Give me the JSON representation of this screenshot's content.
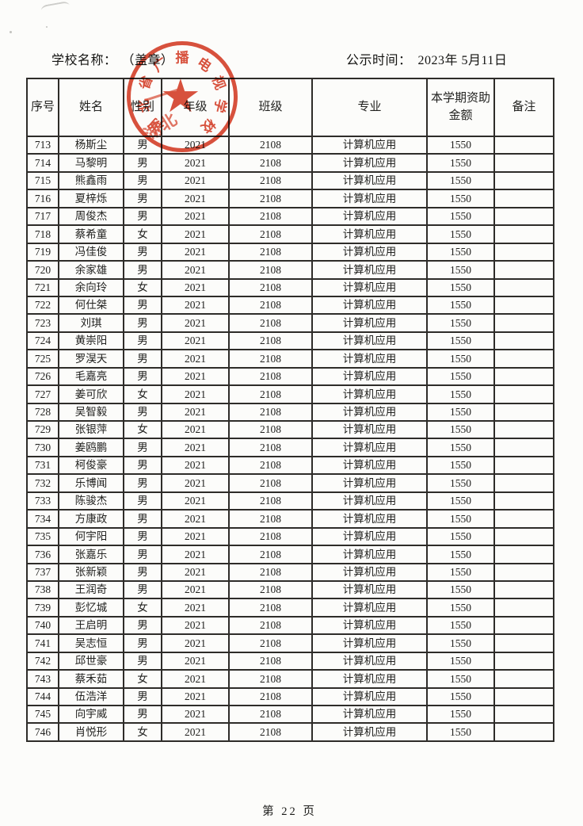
{
  "header": {
    "school_label": "学校名称：",
    "seal_note": "（盖章）",
    "publish_label": "公示时间：",
    "publish_date": "2023年 5月11日"
  },
  "stamp": {
    "text": "湖北省广播电视学校",
    "star_icon": "★",
    "ghost_text": "湖北"
  },
  "colors": {
    "stamp_red": "#d8452f"
  },
  "table": {
    "column_keys": [
      "no",
      "name",
      "gender",
      "grade",
      "class",
      "major",
      "amount",
      "note"
    ],
    "headers": [
      "序号",
      "姓名",
      "性别",
      "年级",
      "班级",
      "专业",
      "本学期资助金额",
      "备注"
    ],
    "rows": [
      [
        "713",
        "杨斯尘",
        "男",
        "2021",
        "2108",
        "计算机应用",
        "1550",
        ""
      ],
      [
        "714",
        "马黎明",
        "男",
        "2021",
        "2108",
        "计算机应用",
        "1550",
        ""
      ],
      [
        "715",
        "熊鑫雨",
        "男",
        "2021",
        "2108",
        "计算机应用",
        "1550",
        ""
      ],
      [
        "716",
        "夏梓烁",
        "男",
        "2021",
        "2108",
        "计算机应用",
        "1550",
        ""
      ],
      [
        "717",
        "周俊杰",
        "男",
        "2021",
        "2108",
        "计算机应用",
        "1550",
        ""
      ],
      [
        "718",
        "蔡希童",
        "女",
        "2021",
        "2108",
        "计算机应用",
        "1550",
        ""
      ],
      [
        "719",
        "冯佳俊",
        "男",
        "2021",
        "2108",
        "计算机应用",
        "1550",
        ""
      ],
      [
        "720",
        "余家雄",
        "男",
        "2021",
        "2108",
        "计算机应用",
        "1550",
        ""
      ],
      [
        "721",
        "余向玲",
        "女",
        "2021",
        "2108",
        "计算机应用",
        "1550",
        ""
      ],
      [
        "722",
        "何仕桀",
        "男",
        "2021",
        "2108",
        "计算机应用",
        "1550",
        ""
      ],
      [
        "723",
        "刘琪",
        "男",
        "2021",
        "2108",
        "计算机应用",
        "1550",
        ""
      ],
      [
        "724",
        "黄崇阳",
        "男",
        "2021",
        "2108",
        "计算机应用",
        "1550",
        ""
      ],
      [
        "725",
        "罗淏天",
        "男",
        "2021",
        "2108",
        "计算机应用",
        "1550",
        ""
      ],
      [
        "726",
        "毛嘉亮",
        "男",
        "2021",
        "2108",
        "计算机应用",
        "1550",
        ""
      ],
      [
        "727",
        "姜可欣",
        "女",
        "2021",
        "2108",
        "计算机应用",
        "1550",
        ""
      ],
      [
        "728",
        "吴智毅",
        "男",
        "2021",
        "2108",
        "计算机应用",
        "1550",
        ""
      ],
      [
        "729",
        "张银萍",
        "女",
        "2021",
        "2108",
        "计算机应用",
        "1550",
        ""
      ],
      [
        "730",
        "姜鸥鹏",
        "男",
        "2021",
        "2108",
        "计算机应用",
        "1550",
        ""
      ],
      [
        "731",
        "柯俊豪",
        "男",
        "2021",
        "2108",
        "计算机应用",
        "1550",
        ""
      ],
      [
        "732",
        "乐博闻",
        "男",
        "2021",
        "2108",
        "计算机应用",
        "1550",
        ""
      ],
      [
        "733",
        "陈骏杰",
        "男",
        "2021",
        "2108",
        "计算机应用",
        "1550",
        ""
      ],
      [
        "734",
        "方康政",
        "男",
        "2021",
        "2108",
        "计算机应用",
        "1550",
        ""
      ],
      [
        "735",
        "何宇阳",
        "男",
        "2021",
        "2108",
        "计算机应用",
        "1550",
        ""
      ],
      [
        "736",
        "张嘉乐",
        "男",
        "2021",
        "2108",
        "计算机应用",
        "1550",
        ""
      ],
      [
        "737",
        "张新颖",
        "男",
        "2021",
        "2108",
        "计算机应用",
        "1550",
        ""
      ],
      [
        "738",
        "王润奇",
        "男",
        "2021",
        "2108",
        "计算机应用",
        "1550",
        ""
      ],
      [
        "739",
        "彭忆城",
        "女",
        "2021",
        "2108",
        "计算机应用",
        "1550",
        ""
      ],
      [
        "740",
        "王启明",
        "男",
        "2021",
        "2108",
        "计算机应用",
        "1550",
        ""
      ],
      [
        "741",
        "吴志恒",
        "男",
        "2021",
        "2108",
        "计算机应用",
        "1550",
        ""
      ],
      [
        "742",
        "邱世豪",
        "男",
        "2021",
        "2108",
        "计算机应用",
        "1550",
        ""
      ],
      [
        "743",
        "蔡禾茹",
        "女",
        "2021",
        "2108",
        "计算机应用",
        "1550",
        ""
      ],
      [
        "744",
        "伍浩洋",
        "男",
        "2021",
        "2108",
        "计算机应用",
        "1550",
        ""
      ],
      [
        "745",
        "向宇威",
        "男",
        "2021",
        "2108",
        "计算机应用",
        "1550",
        ""
      ],
      [
        "746",
        "肖悦形",
        "女",
        "2021",
        "2108",
        "计算机应用",
        "1550",
        ""
      ]
    ]
  },
  "footer": {
    "page_label": "第 22 页"
  }
}
